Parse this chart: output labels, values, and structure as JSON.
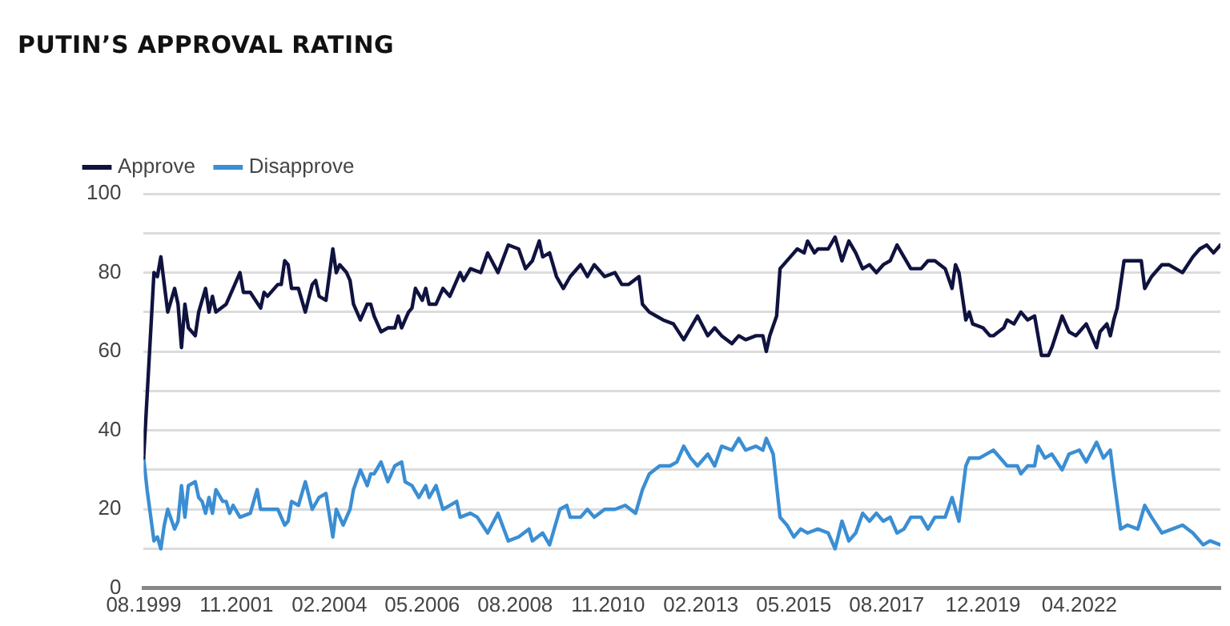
{
  "chart_data": {
    "type": "line",
    "title": "PUTIN’S APPROVAL RATING",
    "xlim": [
      "1999-08",
      "2025-09"
    ],
    "xticks": [
      {
        "value": "1999-08",
        "label": "08.1999"
      },
      {
        "value": "2001-11",
        "label": "11.2001"
      },
      {
        "value": "2004-02",
        "label": "02.2004"
      },
      {
        "value": "2006-05",
        "label": "05.2006"
      },
      {
        "value": "2008-08",
        "label": "08.2008"
      },
      {
        "value": "2010-11",
        "label": "11.2010"
      },
      {
        "value": "2013-02",
        "label": "02.2013"
      },
      {
        "value": "2015-05",
        "label": "05.2015"
      },
      {
        "value": "2017-08",
        "label": "08.2017"
      },
      {
        "value": "2019-12",
        "label": "12.2019"
      },
      {
        "value": "2022-04",
        "label": "04.2022"
      }
    ],
    "ylim": [
      0,
      100
    ],
    "yticks": [
      0,
      {
        "value": 10,
        "label": null
      },
      20,
      {
        "value": 30,
        "label": null
      },
      40,
      {
        "value": 50,
        "label": null
      },
      60,
      {
        "value": 70,
        "label": null
      },
      80,
      {
        "value": 90,
        "label": null
      },
      100
    ],
    "grid": "y",
    "legend": "top left",
    "marker": "none",
    "line_style": "solid",
    "series": [
      {
        "name": "Approve",
        "color": "#10123f",
        "x": [
          "1999-08",
          "1999-11",
          "1999-12",
          "2000-01",
          "2000-02",
          "2000-03",
          "2000-05",
          "2000-06",
          "2000-07",
          "2000-08",
          "2000-09",
          "2000-11",
          "2000-12",
          "2001-02",
          "2001-03",
          "2001-04",
          "2001-05",
          "2001-08",
          "2001-09",
          "2001-12",
          "2002-01",
          "2002-03",
          "2002-06",
          "2002-07",
          "2002-08",
          "2002-11",
          "2002-12",
          "2003-01",
          "2003-02",
          "2003-03",
          "2003-05",
          "2003-07",
          "2003-09",
          "2003-10",
          "2003-11",
          "2004-01",
          "2004-03",
          "2004-04",
          "2004-05",
          "2004-07",
          "2004-08",
          "2004-09",
          "2004-11",
          "2005-01",
          "2005-02",
          "2005-03",
          "2005-05",
          "2005-07",
          "2005-09",
          "2005-10",
          "2005-11",
          "2005-12",
          "2006-01",
          "2006-02",
          "2006-03",
          "2006-05",
          "2006-06",
          "2006-07",
          "2006-09",
          "2006-11",
          "2007-01",
          "2007-04",
          "2007-05",
          "2007-07",
          "2007-10",
          "2007-12",
          "2008-03",
          "2008-06",
          "2008-09",
          "2008-11",
          "2009-01",
          "2009-03",
          "2009-04",
          "2009-06",
          "2009-08",
          "2009-10",
          "2009-12",
          "2010-03",
          "2010-05",
          "2010-07",
          "2010-10",
          "2011-01",
          "2011-03",
          "2011-05",
          "2011-08",
          "2011-09",
          "2011-11",
          "2012-01",
          "2012-03",
          "2012-06",
          "2012-09",
          "2012-11",
          "2013-01",
          "2013-04",
          "2013-06",
          "2013-08",
          "2013-11",
          "2014-01",
          "2014-03",
          "2014-06",
          "2014-08",
          "2014-09",
          "2014-10",
          "2014-12",
          "2015-01",
          "2015-04",
          "2015-06",
          "2015-08",
          "2015-09",
          "2015-11",
          "2015-12",
          "2016-03",
          "2016-05",
          "2016-07",
          "2016-09",
          "2016-11",
          "2017-01",
          "2017-03",
          "2017-05",
          "2017-07",
          "2017-09",
          "2017-11",
          "2018-01",
          "2018-03",
          "2018-06",
          "2018-08",
          "2018-10",
          "2019-01",
          "2019-03",
          "2019-04",
          "2019-05",
          "2019-07",
          "2019-08",
          "2019-09",
          "2019-12",
          "2020-02",
          "2020-03",
          "2020-06",
          "2020-07",
          "2020-09",
          "2020-11",
          "2021-01",
          "2021-03",
          "2021-05",
          "2021-07",
          "2021-08",
          "2021-11",
          "2022-01",
          "2022-03",
          "2022-04",
          "2022-06",
          "2022-07",
          "2022-09",
          "2022-10",
          "2022-12",
          "2023-01",
          "2023-02",
          "2023-03",
          "2023-05",
          "2023-07",
          "2023-10",
          "2023-11",
          "2024-01",
          "2024-04",
          "2024-06",
          "2024-08",
          "2024-10",
          "2025-01",
          "2025-03",
          "2025-05",
          "2025-07",
          "2025-09"
        ],
        "values": [
          33,
          80,
          79,
          84,
          77,
          70,
          76,
          72,
          61,
          72,
          66,
          64,
          70,
          76,
          70,
          74,
          70,
          72,
          74,
          80,
          75,
          75,
          71,
          75,
          74,
          77,
          77,
          83,
          82,
          76,
          76,
          70,
          77,
          78,
          74,
          73,
          86,
          80,
          82,
          80,
          78,
          72,
          68,
          72,
          72,
          69,
          65,
          66,
          66,
          69,
          66,
          68,
          70,
          71,
          76,
          73,
          76,
          72,
          72,
          76,
          74,
          80,
          78,
          81,
          80,
          85,
          80,
          87,
          86,
          81,
          83,
          88,
          84,
          85,
          79,
          76,
          79,
          82,
          79,
          82,
          79,
          80,
          77,
          77,
          79,
          72,
          70,
          69,
          68,
          67,
          63,
          66,
          69,
          64,
          66,
          64,
          62,
          64,
          63,
          64,
          64,
          60,
          64,
          69,
          81,
          84,
          86,
          85,
          88,
          85,
          86,
          86,
          89,
          83,
          88,
          85,
          81,
          82,
          80,
          82,
          83,
          87,
          84,
          81,
          81,
          83,
          83,
          81,
          76,
          82,
          80,
          68,
          70,
          67,
          66,
          64,
          64,
          66,
          68,
          67,
          70,
          68,
          69,
          59,
          59,
          61,
          69,
          65,
          64,
          65,
          67,
          65,
          61,
          65,
          67,
          64,
          68,
          71,
          83,
          83,
          83,
          76,
          79,
          82,
          82,
          81,
          80,
          84,
          86,
          87,
          85,
          87
        ]
      },
      {
        "name": "Disapprove",
        "color": "#3b8ed3",
        "x": [
          "1999-08",
          "1999-09",
          "1999-11",
          "1999-12",
          "2000-01",
          "2000-02",
          "2000-03",
          "2000-05",
          "2000-06",
          "2000-07",
          "2000-08",
          "2000-09",
          "2000-11",
          "2000-12",
          "2001-01",
          "2001-02",
          "2001-03",
          "2001-04",
          "2001-05",
          "2001-07",
          "2001-08",
          "2001-09",
          "2001-10",
          "2001-12",
          "2002-03",
          "2002-05",
          "2002-06",
          "2002-08",
          "2002-11",
          "2003-01",
          "2003-02",
          "2003-03",
          "2003-05",
          "2003-07",
          "2003-09",
          "2003-11",
          "2004-01",
          "2004-03",
          "2004-04",
          "2004-06",
          "2004-08",
          "2004-09",
          "2004-11",
          "2005-01",
          "2005-02",
          "2005-03",
          "2005-05",
          "2005-07",
          "2005-09",
          "2005-11",
          "2005-12",
          "2006-02",
          "2006-04",
          "2006-06",
          "2006-07",
          "2006-09",
          "2006-11",
          "2007-01",
          "2007-03",
          "2007-04",
          "2007-07",
          "2007-09",
          "2007-12",
          "2008-03",
          "2008-06",
          "2008-09",
          "2008-12",
          "2009-01",
          "2009-04",
          "2009-06",
          "2009-09",
          "2009-11",
          "2009-12",
          "2010-03",
          "2010-05",
          "2010-07",
          "2010-10",
          "2011-01",
          "2011-04",
          "2011-07",
          "2011-09",
          "2011-11",
          "2012-02",
          "2012-05",
          "2012-07",
          "2012-09",
          "2012-11",
          "2013-01",
          "2013-04",
          "2013-06",
          "2013-08",
          "2013-11",
          "2014-01",
          "2014-03",
          "2014-06",
          "2014-08",
          "2014-09",
          "2014-11",
          "2015-01",
          "2015-03",
          "2015-05",
          "2015-07",
          "2015-09",
          "2015-12",
          "2016-03",
          "2016-05",
          "2016-07",
          "2016-09",
          "2016-11",
          "2017-01",
          "2017-03",
          "2017-05",
          "2017-07",
          "2017-09",
          "2017-11",
          "2018-01",
          "2018-03",
          "2018-06",
          "2018-08",
          "2018-10",
          "2019-01",
          "2019-03",
          "2019-05",
          "2019-07",
          "2019-08",
          "2019-11",
          "2020-03",
          "2020-07",
          "2020-10",
          "2020-11",
          "2021-01",
          "2021-03",
          "2021-04",
          "2021-06",
          "2021-08",
          "2021-11",
          "2022-01",
          "2022-04",
          "2022-06",
          "2022-09",
          "2022-11",
          "2023-01",
          "2023-02",
          "2023-04",
          "2023-06",
          "2023-09",
          "2023-11",
          "2024-01",
          "2024-04",
          "2024-07",
          "2024-10",
          "2025-01",
          "2025-04",
          "2025-06",
          "2025-09"
        ],
        "values": [
          33,
          25,
          12,
          13,
          10,
          16,
          20,
          15,
          17,
          26,
          18,
          26,
          27,
          23,
          22,
          19,
          23,
          19,
          25,
          22,
          22,
          19,
          21,
          18,
          19,
          25,
          20,
          20,
          20,
          16,
          17,
          22,
          21,
          27,
          20,
          23,
          24,
          13,
          20,
          16,
          20,
          25,
          30,
          26,
          29,
          29,
          32,
          27,
          31,
          32,
          27,
          26,
          23,
          26,
          23,
          26,
          20,
          21,
          22,
          18,
          19,
          18,
          14,
          19,
          12,
          13,
          15,
          12,
          14,
          11,
          20,
          21,
          18,
          18,
          20,
          18,
          20,
          20,
          21,
          19,
          25,
          29,
          31,
          31,
          32,
          36,
          33,
          31,
          34,
          31,
          36,
          35,
          38,
          35,
          36,
          35,
          38,
          34,
          18,
          16,
          13,
          15,
          14,
          15,
          14,
          10,
          17,
          12,
          14,
          19,
          17,
          19,
          17,
          18,
          14,
          15,
          18,
          18,
          15,
          18,
          18,
          23,
          17,
          31,
          33,
          33,
          35,
          31,
          31,
          29,
          31,
          31,
          36,
          33,
          34,
          30,
          34,
          35,
          32,
          37,
          33,
          35,
          28,
          15,
          16,
          15,
          21,
          18,
          14,
          15,
          16,
          14,
          11,
          12,
          11
        ]
      }
    ]
  }
}
